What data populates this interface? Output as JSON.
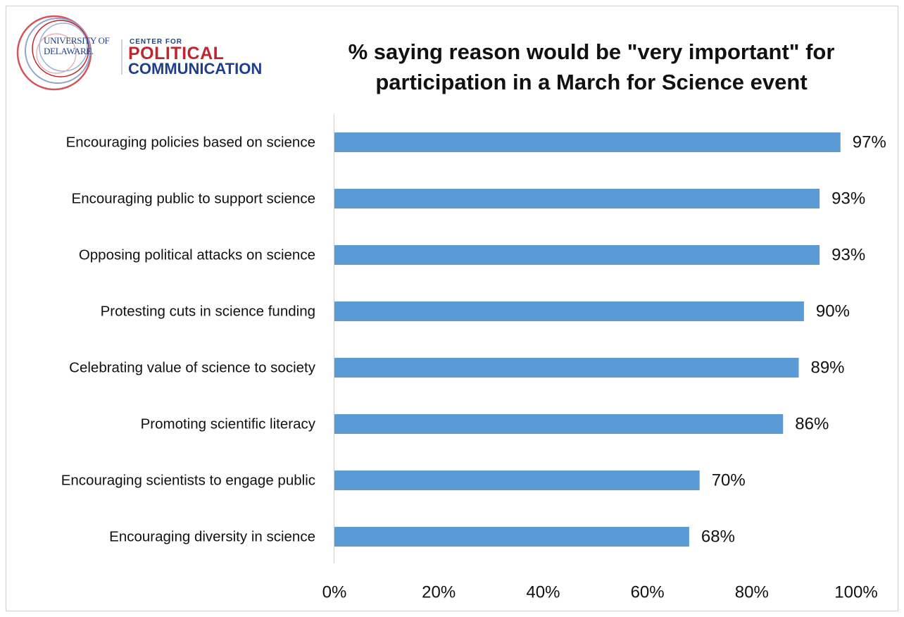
{
  "logo": {
    "university_line1": "UNIVERSITY OF",
    "university_line2": "DELAWARE.",
    "center_for": "CENTER FOR",
    "political": "POLITICAL",
    "communication": "COMMUNICATION"
  },
  "chart_data": {
    "type": "bar",
    "orientation": "horizontal",
    "title": "% saying reason would be \"very important\" for participation in a March for Science event",
    "title_lines": [
      "% saying reason would be \"very important\" for",
      "participation in a March for Science event"
    ],
    "categories": [
      "Encouraging policies based on science",
      "Encouraging public to support science",
      "Opposing political attacks on science",
      "Protesting cuts in science funding",
      "Celebrating value of science to society",
      "Promoting scientific literacy",
      "Encouraging scientists to engage public",
      "Encouraging diversity in science"
    ],
    "values": [
      97,
      93,
      93,
      90,
      89,
      86,
      70,
      68
    ],
    "data_labels": [
      "97%",
      "93%",
      "93%",
      "90%",
      "89%",
      "86%",
      "70%",
      "68%"
    ],
    "xlim": [
      0,
      100
    ],
    "x_ticks": [
      0,
      20,
      40,
      60,
      80,
      100
    ],
    "x_tick_labels": [
      "0%",
      "20%",
      "40%",
      "60%",
      "80%",
      "100%"
    ],
    "grid": false,
    "legend": "none",
    "bar_color": "#5b9bd5"
  }
}
